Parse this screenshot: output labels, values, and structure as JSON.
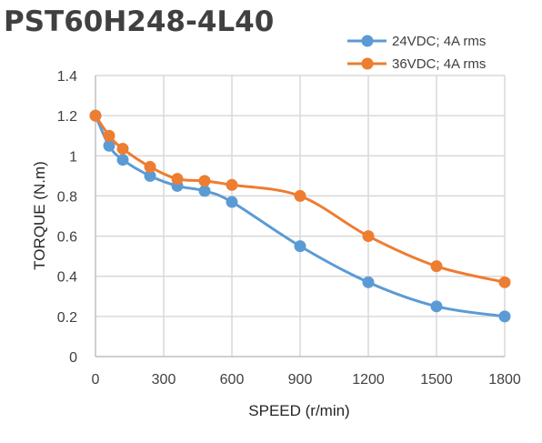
{
  "chart_data": {
    "type": "line",
    "title": "PST60H248-4L40",
    "xlabel": "SPEED (r/min)",
    "ylabel": "TORQUE (N.m)",
    "xlim": [
      0,
      1800
    ],
    "ylim": [
      0,
      1.4
    ],
    "x_ticks": [
      "0",
      "300",
      "600",
      "900",
      "1200",
      "1500",
      "1800"
    ],
    "y_ticks": [
      "0",
      "0.2",
      "0.4",
      "0.6",
      "0.8",
      "1",
      "1.2",
      "1.4"
    ],
    "grid": true,
    "smooth": true,
    "legend_position": "top-right",
    "series": [
      {
        "name": "24VDC; 4A rms",
        "color": "#5b9bd5",
        "x": [
          0,
          60,
          120,
          240,
          360,
          480,
          600,
          900,
          1200,
          1500,
          1800
        ],
        "y": [
          1.2,
          1.05,
          0.98,
          0.9,
          0.85,
          0.825,
          0.77,
          0.55,
          0.37,
          0.25,
          0.2
        ]
      },
      {
        "name": "36VDC; 4A rms",
        "color": "#ed7d31",
        "x": [
          0,
          60,
          120,
          240,
          360,
          480,
          600,
          900,
          1200,
          1500,
          1800
        ],
        "y": [
          1.2,
          1.1,
          1.035,
          0.945,
          0.885,
          0.875,
          0.855,
          0.8,
          0.6,
          0.45,
          0.37
        ]
      }
    ]
  }
}
